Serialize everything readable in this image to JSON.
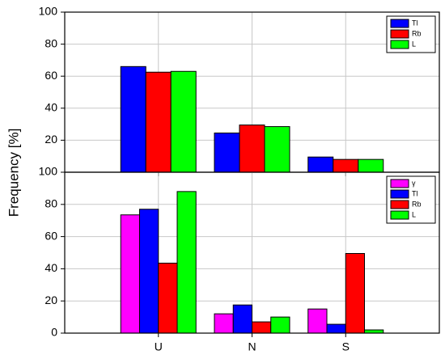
{
  "chart_data": [
    {
      "type": "bar",
      "ylabel": "Frequency [%]",
      "categories": [
        null,
        null,
        null
      ],
      "series": [
        {
          "name": "Tl",
          "color": "#0000ff",
          "values": [
            66,
            24.5,
            9.5
          ]
        },
        {
          "name": "Rb",
          "color": "#ff0000",
          "values": [
            62.5,
            29.5,
            8
          ]
        },
        {
          "name": "L",
          "color": "#00ff00",
          "values": [
            63,
            28.5,
            8
          ]
        }
      ],
      "ylim": [
        0,
        100
      ],
      "yticks": [
        20,
        40,
        60,
        80,
        100
      ],
      "grid": true,
      "legend": "top-right"
    },
    {
      "type": "bar",
      "categories": [
        "U",
        "N",
        "S"
      ],
      "series": [
        {
          "name": "γ",
          "color": "#ff00ff",
          "values": [
            73.5,
            12,
            15
          ]
        },
        {
          "name": "Tl",
          "color": "#0000ff",
          "values": [
            77,
            17.5,
            5.5
          ]
        },
        {
          "name": "Rb",
          "color": "#ff0000",
          "values": [
            43.5,
            7,
            49.5
          ]
        },
        {
          "name": "L",
          "color": "#00ff00",
          "values": [
            88,
            10,
            2
          ]
        }
      ],
      "ylim": [
        0,
        100
      ],
      "yticks": [
        0,
        20,
        40,
        60,
        80,
        100
      ],
      "grid": true,
      "legend": "top-right"
    }
  ]
}
